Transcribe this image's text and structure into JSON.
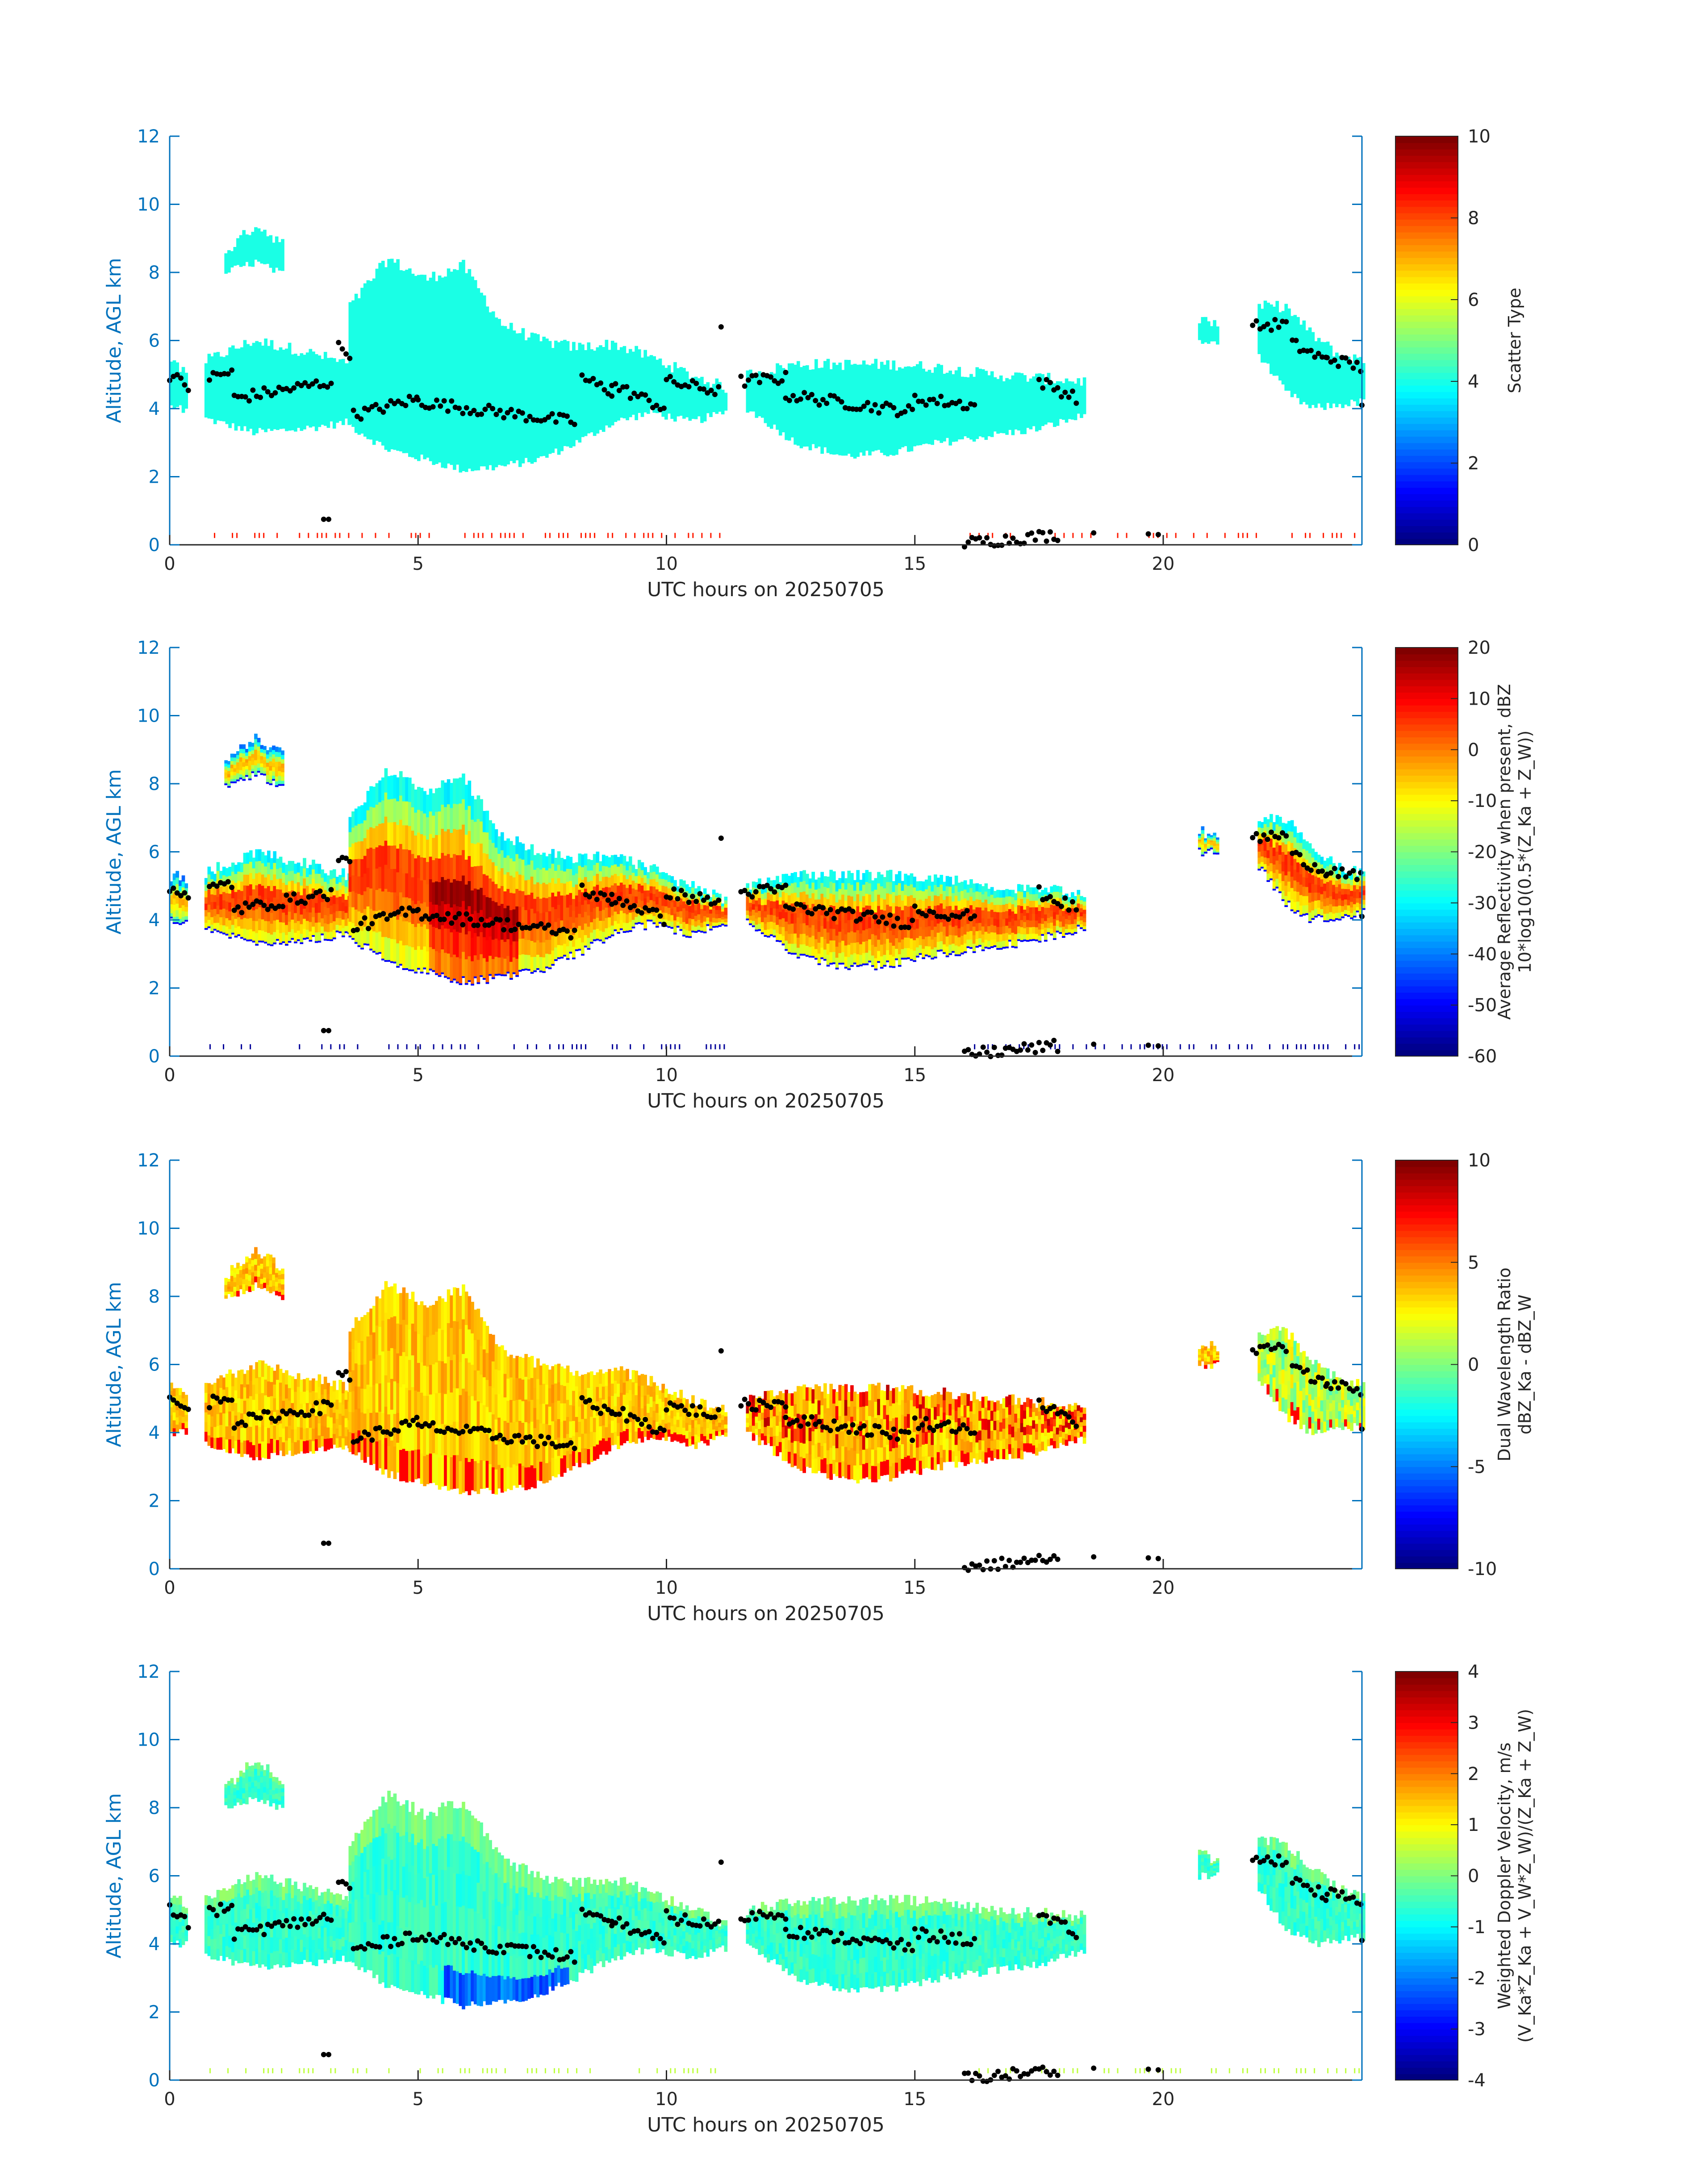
{
  "figure": {
    "date": "20250705",
    "colors": {
      "axis_blue": "#0072BD",
      "text_black": "#262626",
      "marker": "#000000"
    }
  },
  "chart_data": [
    {
      "type": "heatmap",
      "title": "",
      "xlabel": "UTC hours on 20250705",
      "ylabel": "Altitude, AGL km",
      "xlim": [
        0,
        24
      ],
      "ylim": [
        0,
        12
      ],
      "xticks": [
        "0",
        "5",
        "10",
        "15",
        "20"
      ],
      "yticks": [
        "0",
        "2",
        "4",
        "6",
        "8",
        "10",
        "12"
      ],
      "colorbar": {
        "label_lines": [
          "Scatter Type"
        ],
        "range": [
          0,
          10
        ],
        "ticks": [
          "0",
          "2",
          "4",
          "6",
          "8",
          "10"
        ],
        "colormap": "jet"
      },
      "field": "scatter_type",
      "dominant_value": 4.0,
      "near_surface_value": 8.5
    },
    {
      "type": "heatmap",
      "title": "",
      "xlabel": "UTC hours on 20250705",
      "ylabel": "Altitude, AGL km",
      "xlim": [
        0,
        24
      ],
      "ylim": [
        0,
        12
      ],
      "xticks": [
        "0",
        "5",
        "10",
        "15",
        "20"
      ],
      "yticks": [
        "0",
        "2",
        "4",
        "6",
        "8",
        "10",
        "12"
      ],
      "colorbar": {
        "label_lines": [
          "Average Reflectivity when present, dBZ",
          "10*log10(0.5*(Z_Ka + Z_W))"
        ],
        "range": [
          -60,
          20
        ],
        "ticks": [
          "-60",
          "-50",
          "-40",
          "-30",
          "-20",
          "-10",
          "0",
          "10",
          "20"
        ],
        "colormap": "jet"
      },
      "field": "reflectivity",
      "edge_value": -35,
      "core_value": 5,
      "near_surface_value": -58
    },
    {
      "type": "heatmap",
      "title": "",
      "xlabel": "UTC hours on 20250705",
      "ylabel": "Altitude, AGL km",
      "xlim": [
        0,
        24
      ],
      "ylim": [
        0,
        12
      ],
      "xticks": [
        "0",
        "5",
        "10",
        "15",
        "20"
      ],
      "yticks": [
        "0",
        "2",
        "4",
        "6",
        "8",
        "10",
        "12"
      ],
      "colorbar": {
        "label_lines": [
          "Dual Wavelength Ratio",
          "dBZ_Ka - dBZ_W"
        ],
        "range": [
          -10,
          10
        ],
        "ticks": [
          "-10",
          "-5",
          "0",
          "5",
          "10"
        ],
        "colormap": "jet"
      },
      "field": "dual_wavelength_ratio",
      "typical_value": 3.5,
      "core_value": 7.5
    },
    {
      "type": "heatmap",
      "title": "",
      "xlabel": "UTC hours on 20250705",
      "ylabel": "Altitude, AGL km",
      "xlim": [
        0,
        24
      ],
      "ylim": [
        0,
        12
      ],
      "xticks": [
        "0",
        "5",
        "10",
        "15",
        "20"
      ],
      "yticks": [
        "0",
        "2",
        "4",
        "6",
        "8",
        "10",
        "12"
      ],
      "colorbar": {
        "label_lines": [
          "Weighted Doppler Velocity, m/s",
          "(V_Ka*Z_Ka + V_W*Z_W)/(Z_Ka + Z_W)"
        ],
        "range": [
          -4,
          4
        ],
        "ticks": [
          "-4",
          "-3",
          "-2",
          "-1",
          "0",
          "1",
          "2",
          "3",
          "4"
        ],
        "colormap": "jet"
      },
      "field": "doppler_velocity",
      "typical_value": -0.6,
      "core_value": -2.2,
      "near_surface_value": 0.5
    }
  ],
  "cloud_layers": [
    {
      "name": "main-early",
      "t0": 0.7,
      "t1": 3.6,
      "base": [
        3.7,
        3.3,
        3.4,
        3.6
      ],
      "top": [
        5.4,
        6.0,
        5.7,
        5.3
      ]
    },
    {
      "name": "main",
      "t0": 3.6,
      "t1": 11.2,
      "base": [
        3.5,
        2.8,
        2.5,
        2.2,
        2.3,
        2.5,
        3.0,
        3.6,
        3.9,
        3.6,
        3.9
      ],
      "top": [
        7.0,
        8.4,
        7.8,
        8.2,
        6.5,
        6.0,
        5.8,
        5.9,
        5.5,
        5.0,
        4.6
      ]
    },
    {
      "name": "midday",
      "t0": 11.6,
      "t1": 18.4,
      "base": [
        4.0,
        3.0,
        2.6,
        2.7,
        3.0,
        3.2,
        3.4,
        3.8
      ],
      "top": [
        5.0,
        5.3,
        5.3,
        5.3,
        5.2,
        5.0,
        4.9,
        4.8
      ]
    },
    {
      "name": "late",
      "t0": 21.9,
      "t1": 24.0,
      "base": [
        5.6,
        4.5,
        4.0,
        4.1,
        4.2
      ],
      "top": [
        7.0,
        7.0,
        6.2,
        5.6,
        5.4
      ]
    },
    {
      "name": "cirrus",
      "t0": 1.1,
      "t1": 2.3,
      "base": [
        8.0,
        8.3,
        7.9
      ],
      "top": [
        8.6,
        9.4,
        8.8
      ]
    },
    {
      "name": "fragment-1",
      "t0": 0.0,
      "t1": 0.35,
      "base": [
        4.0,
        4.0
      ],
      "top": [
        5.3,
        5.2
      ]
    },
    {
      "name": "fragment-2",
      "t0": 20.7,
      "t1": 21.1,
      "base": [
        6.0,
        6.0
      ],
      "top": [
        6.6,
        6.5
      ]
    }
  ],
  "marker_segments": [
    {
      "t0": 0.0,
      "t1": 0.4,
      "alt0": 5.0,
      "alt1": 4.6
    },
    {
      "t0": 0.8,
      "t1": 1.3,
      "alt0": 4.9,
      "alt1": 5.1
    },
    {
      "t0": 1.3,
      "t1": 3.3,
      "alt0": 4.3,
      "alt1": 4.8
    },
    {
      "t0": 3.4,
      "t1": 3.7,
      "alt0": 5.8,
      "alt1": 5.6
    },
    {
      "t0": 3.7,
      "t1": 5.0,
      "alt0": 3.8,
      "alt1": 4.3
    },
    {
      "t0": 5.0,
      "t1": 8.2,
      "alt0": 4.2,
      "alt1": 3.6
    },
    {
      "t0": 8.3,
      "t1": 8.9,
      "alt0": 4.9,
      "alt1": 4.5
    },
    {
      "t0": 8.9,
      "t1": 10.0,
      "alt0": 4.7,
      "alt1": 4.0
    },
    {
      "t0": 10.0,
      "t1": 11.1,
      "alt0": 4.8,
      "alt1": 4.5
    },
    {
      "t0": 11.5,
      "t1": 12.4,
      "alt0": 4.8,
      "alt1": 4.9
    },
    {
      "t0": 12.4,
      "t1": 15.0,
      "alt0": 4.4,
      "alt1": 3.9
    },
    {
      "t0": 15.0,
      "t1": 16.2,
      "alt0": 4.3,
      "alt1": 4.1
    },
    {
      "t0": 17.5,
      "t1": 18.3,
      "alt0": 4.8,
      "alt1": 4.3
    },
    {
      "t0": 21.8,
      "t1": 22.5,
      "alt0": 6.4,
      "alt1": 6.5
    },
    {
      "t0": 22.6,
      "t1": 23.3,
      "alt0": 5.9,
      "alt1": 5.4
    },
    {
      "t0": 23.3,
      "t1": 24.0,
      "alt0": 5.5,
      "alt1": 5.2
    },
    {
      "t0": 16.0,
      "t1": 17.9,
      "alt0": 0.05,
      "alt1": 0.3
    }
  ],
  "isolated_markers": [
    {
      "t": 3.1,
      "alt": 0.75
    },
    {
      "t": 3.2,
      "alt": 0.75
    },
    {
      "t": 11.1,
      "alt": 6.4
    },
    {
      "t": 18.6,
      "alt": 0.35
    },
    {
      "t": 19.7,
      "alt": 0.32
    },
    {
      "t": 19.9,
      "alt": 0.3
    },
    {
      "t": 24.0,
      "alt": 4.1
    }
  ]
}
